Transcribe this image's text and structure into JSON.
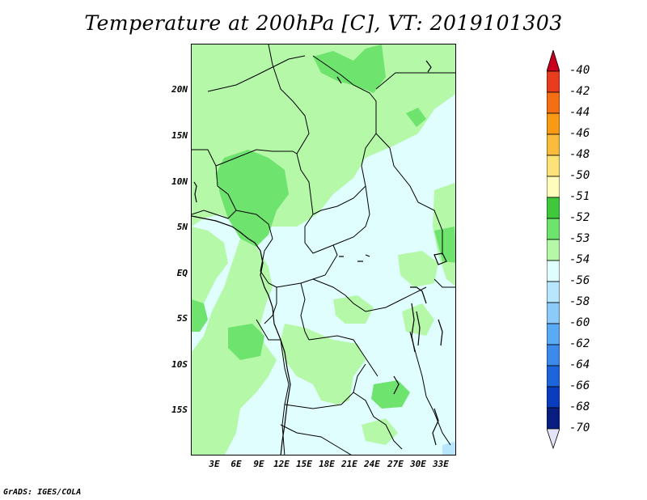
{
  "title": "Temperature at 200hPa [C], VT: 2019101303",
  "y_axis_labels": [
    "20N",
    "15N",
    "10N",
    "5N",
    "EQ",
    "5S",
    "10S",
    "15S"
  ],
  "x_axis_labels": [
    "3E",
    "6E",
    "9E",
    "12E",
    "15E",
    "18E",
    "21E",
    "24E",
    "27E",
    "30E",
    "33E"
  ],
  "colorbar": {
    "labels": [
      "-40",
      "-42",
      "-44",
      "-46",
      "-48",
      "-50",
      "-51",
      "-52",
      "-53",
      "-54",
      "-56",
      "-58",
      "-60",
      "-62",
      "-64",
      "-66",
      "-68",
      "-70"
    ],
    "colors": [
      "#c8001e",
      "#e83c1e",
      "#f46e14",
      "#f89a14",
      "#fbbb3c",
      "#fde278",
      "#fffcbc",
      "#3ec83c",
      "#6ee46e",
      "#b4f8a8",
      "#e0fefe",
      "#b8e6fe",
      "#8ccafa",
      "#5aabf6",
      "#3c8aec",
      "#1e64dc",
      "#0a3cbe",
      "#0a1e82",
      "#e4e4f8"
    ]
  },
  "map_colors": {
    "c53": "#b4f8a8",
    "c52": "#6ee46e",
    "c54": "#e0fefe",
    "c56": "#b8e6fe",
    "border": "#000000"
  },
  "credit": "GrADS: IGES/COLA"
}
